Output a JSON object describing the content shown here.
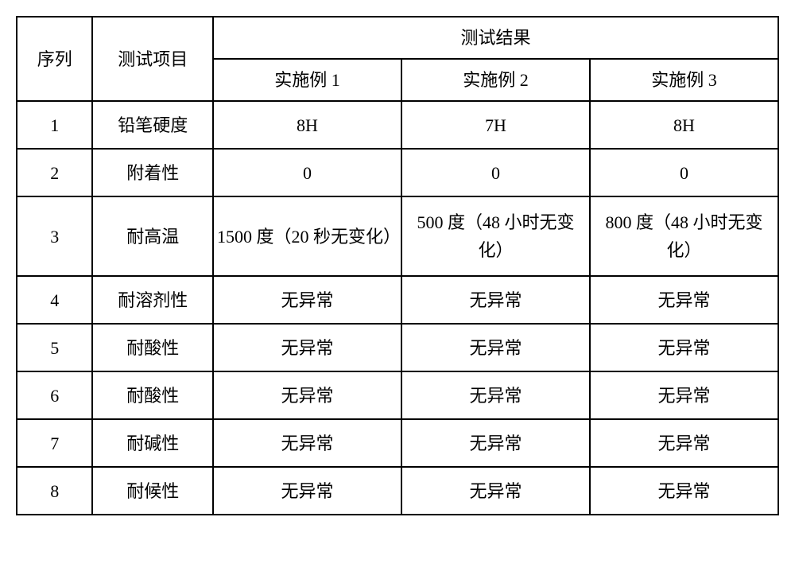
{
  "table": {
    "columns": {
      "seq": "序列",
      "item": "测试项目",
      "result_header": "测试结果",
      "sub1": "实施例 1",
      "sub2": "实施例 2",
      "sub3": "实施例 3"
    },
    "rows": [
      {
        "seq": "1",
        "item": "铅笔硬度",
        "r1": "8H",
        "r2": "7H",
        "r3": "8H"
      },
      {
        "seq": "2",
        "item": "附着性",
        "r1": "0",
        "r2": "0",
        "r3": "0"
      },
      {
        "seq": "3",
        "item": "耐高温",
        "r1": "1500 度（20 秒无变化）",
        "r2": "500 度（48 小时无变化）",
        "r3": "800 度（48 小时无变化）"
      },
      {
        "seq": "4",
        "item": "耐溶剂性",
        "r1": "无异常",
        "r2": "无异常",
        "r3": "无异常"
      },
      {
        "seq": "5",
        "item": "耐酸性",
        "r1": "无异常",
        "r2": "无异常",
        "r3": "无异常"
      },
      {
        "seq": "6",
        "item": "耐酸性",
        "r1": "无异常",
        "r2": "无异常",
        "r3": "无异常"
      },
      {
        "seq": "7",
        "item": "耐碱性",
        "r1": "无异常",
        "r2": "无异常",
        "r3": "无异常"
      },
      {
        "seq": "8",
        "item": "耐候性",
        "r1": "无异常",
        "r2": "无异常",
        "r3": "无异常"
      }
    ],
    "border_color": "#000000",
    "background_color": "#ffffff",
    "font_size": 22,
    "col_widths": {
      "seq": 90,
      "item": 150,
      "result": 240
    }
  }
}
